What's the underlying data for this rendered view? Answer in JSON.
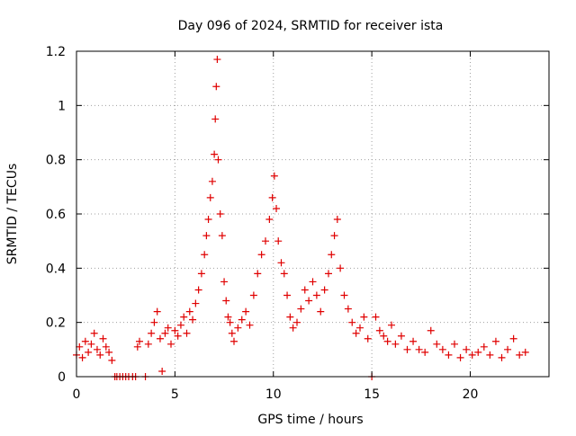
{
  "chart_data": {
    "type": "scatter",
    "title": "Day 096 of 2024, SRMTID for receiver ista",
    "xlabel": "GPS time / hours",
    "ylabel": "SRMTID / TECUs",
    "xlim": [
      0,
      24
    ],
    "ylim": [
      0,
      1.2
    ],
    "x_ticks": [
      0,
      5,
      10,
      15,
      20
    ],
    "x_tick_labels": [
      "0",
      "5",
      "10",
      "15",
      "20"
    ],
    "y_ticks": [
      0,
      0.2,
      0.4,
      0.6,
      0.8,
      1.0,
      1.2
    ],
    "y_tick_labels": [
      "0",
      "0.2",
      "0.4",
      "0.6",
      "0.8",
      "1",
      "1.2"
    ],
    "grid": true,
    "marker": "+",
    "series": [
      {
        "name": "ista",
        "color": "#e00000",
        "x": [
          0.0,
          0.15,
          0.3,
          0.45,
          0.6,
          0.75,
          0.9,
          1.05,
          1.2,
          1.35,
          1.5,
          1.65,
          1.8,
          1.95,
          2.05,
          2.2,
          2.35,
          2.5,
          2.65,
          2.85,
          3.0,
          3.1,
          3.2,
          3.5,
          3.65,
          3.8,
          3.95,
          4.1,
          4.25,
          4.35,
          4.5,
          4.65,
          4.8,
          5.0,
          5.15,
          5.3,
          5.45,
          5.6,
          5.75,
          5.9,
          6.05,
          6.2,
          6.35,
          6.5,
          6.6,
          6.7,
          6.8,
          6.9,
          7.0,
          7.05,
          7.1,
          7.15,
          7.2,
          7.3,
          7.4,
          7.5,
          7.6,
          7.7,
          7.8,
          7.9,
          8.0,
          8.2,
          8.4,
          8.6,
          8.8,
          9.0,
          9.2,
          9.4,
          9.6,
          9.8,
          9.95,
          10.05,
          10.15,
          10.25,
          10.4,
          10.55,
          10.7,
          10.85,
          11.0,
          11.2,
          11.4,
          11.6,
          11.8,
          12.0,
          12.2,
          12.4,
          12.6,
          12.8,
          12.95,
          13.1,
          13.25,
          13.4,
          13.6,
          13.8,
          14.0,
          14.2,
          14.4,
          14.6,
          14.8,
          15.0,
          15.2,
          15.4,
          15.6,
          15.8,
          16.0,
          16.2,
          16.5,
          16.8,
          17.1,
          17.4,
          17.7,
          18.0,
          18.3,
          18.6,
          18.9,
          19.2,
          19.5,
          19.8,
          20.1,
          20.4,
          20.7,
          21.0,
          21.3,
          21.6,
          21.9,
          22.2,
          22.5,
          22.8
        ],
        "y": [
          0.08,
          0.11,
          0.07,
          0.13,
          0.09,
          0.12,
          0.16,
          0.1,
          0.08,
          0.14,
          0.11,
          0.09,
          0.06,
          0.0,
          0.0,
          0.0,
          0.0,
          0.0,
          0.0,
          0.0,
          0.0,
          0.11,
          0.13,
          0.0,
          0.12,
          0.16,
          0.2,
          0.24,
          0.14,
          0.02,
          0.16,
          0.18,
          0.12,
          0.17,
          0.15,
          0.19,
          0.22,
          0.16,
          0.24,
          0.21,
          0.27,
          0.32,
          0.38,
          0.45,
          0.52,
          0.58,
          0.66,
          0.72,
          0.82,
          0.95,
          1.07,
          1.17,
          0.8,
          0.6,
          0.52,
          0.35,
          0.28,
          0.22,
          0.2,
          0.16,
          0.13,
          0.18,
          0.21,
          0.24,
          0.19,
          0.3,
          0.38,
          0.45,
          0.5,
          0.58,
          0.66,
          0.74,
          0.62,
          0.5,
          0.42,
          0.38,
          0.3,
          0.22,
          0.18,
          0.2,
          0.25,
          0.32,
          0.28,
          0.35,
          0.3,
          0.24,
          0.32,
          0.38,
          0.45,
          0.52,
          0.58,
          0.4,
          0.3,
          0.25,
          0.2,
          0.16,
          0.18,
          0.22,
          0.14,
          0.0,
          0.22,
          0.17,
          0.15,
          0.13,
          0.19,
          0.12,
          0.15,
          0.1,
          0.13,
          0.1,
          0.09,
          0.17,
          0.12,
          0.1,
          0.08,
          0.12,
          0.07,
          0.1,
          0.08,
          0.09,
          0.11,
          0.08,
          0.13,
          0.07,
          0.1,
          0.14,
          0.08,
          0.09
        ]
      }
    ]
  }
}
